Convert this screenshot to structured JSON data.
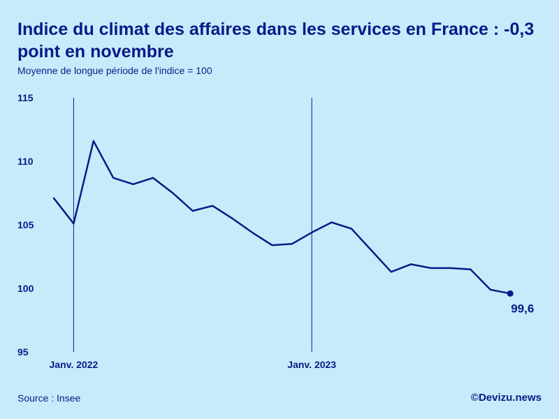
{
  "header": {
    "title": "Indice du climat des affaires dans les services en France : -0,3 point en novembre",
    "subtitle": "Moyenne de longue période de l'indice = 100"
  },
  "footer": {
    "source": "Source : Insee",
    "credit": "©Devizu.news"
  },
  "colors": {
    "background": "#c8ebfb",
    "line": "#0a1a86"
  },
  "chart_data": {
    "type": "line",
    "title": "Indice du climat des affaires dans les services en France : -0,3 point en novembre",
    "subtitle": "Moyenne de longue période de l'indice = 100",
    "xlabel": "",
    "ylabel": "",
    "x": [
      "2021-12",
      "2022-01",
      "2022-02",
      "2022-03",
      "2022-04",
      "2022-05",
      "2022-06",
      "2022-07",
      "2022-08",
      "2022-09",
      "2022-10",
      "2022-11",
      "2022-12",
      "2023-01",
      "2023-02",
      "2023-03",
      "2023-04",
      "2023-05",
      "2023-06",
      "2023-07",
      "2023-08",
      "2023-09",
      "2023-10",
      "2023-11"
    ],
    "series": [
      {
        "values": [
          107.1,
          105.1,
          111.6,
          108.7,
          108.2,
          108.7,
          107.5,
          106.1,
          106.5,
          105.5,
          104.4,
          103.4,
          103.5,
          104.4,
          105.2,
          104.7,
          103.0,
          101.3,
          101.9,
          101.6,
          101.6,
          101.5,
          99.9,
          99.6
        ]
      }
    ],
    "ylim": [
      95,
      115
    ],
    "yticks": [
      "95",
      "100",
      "105",
      "110",
      "115"
    ],
    "xtick_labels": [
      {
        "x": "2022-01",
        "label": "Janv. 2022"
      },
      {
        "x": "2023-01",
        "label": "Janv. 2023"
      }
    ],
    "grid": false,
    "legend": "none",
    "last_value_label": "99,6"
  }
}
